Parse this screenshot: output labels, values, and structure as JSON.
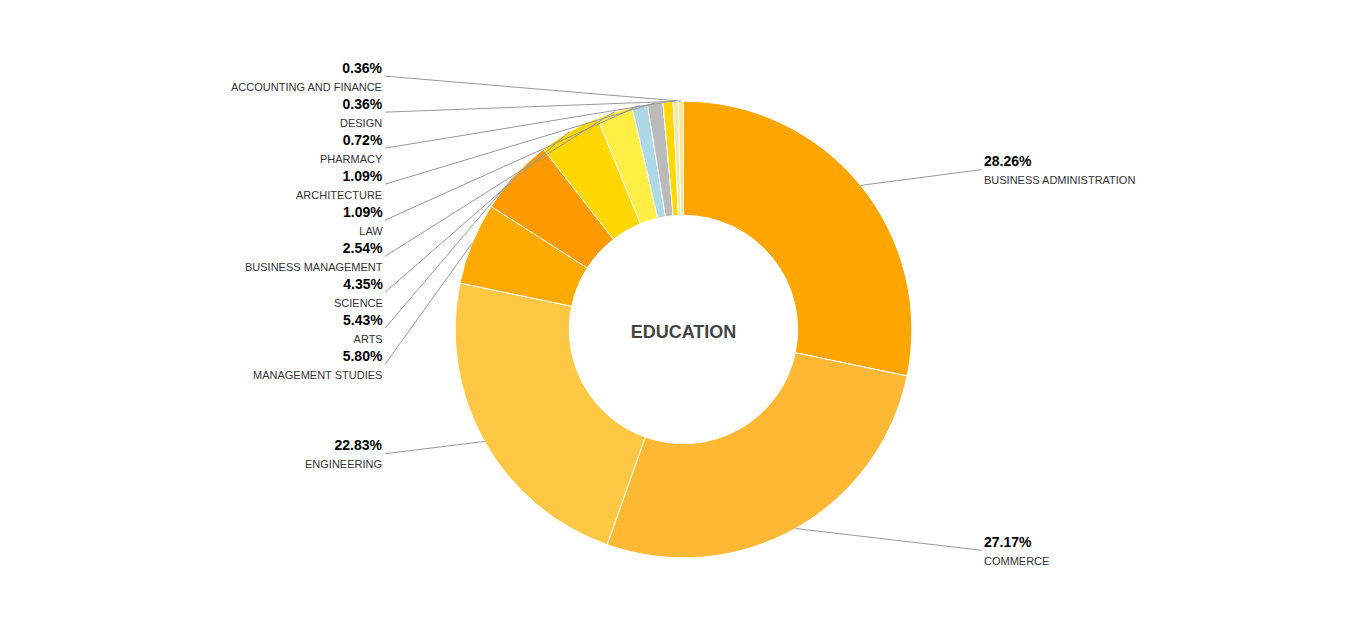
{
  "chart_data": {
    "type": "pie",
    "title": "EDUCATION",
    "categories": [
      "BUSINESS ADMINISTRATION",
      "COMMERCE",
      "ENGINEERING",
      "MANAGEMENT STUDIES",
      "ARTS",
      "SCIENCE",
      "BUSINESS MANAGEMENT",
      "LAW",
      "ARCHITECTURE",
      "PHARMACY",
      "DESIGN",
      "ACCOUNTING AND FINANCE"
    ],
    "values": [
      28.26,
      27.17,
      22.83,
      5.8,
      5.43,
      4.35,
      2.54,
      1.09,
      1.09,
      0.72,
      0.36,
      0.36
    ],
    "value_labels": [
      "28.26%",
      "27.17%",
      "22.83%",
      "5.80%",
      "5.43%",
      "4.35%",
      "2.54%",
      "1.09%",
      "1.09%",
      "0.72%",
      "0.36%",
      "0.36%"
    ],
    "colors": [
      "#FFA500",
      "#FFB833",
      "#FFC844",
      "#FFAA00",
      "#FF9900",
      "#FFD700",
      "#FFEE44",
      "#ADD8E6",
      "#BBBBBB",
      "#FFD700",
      "#EEE8A9",
      "#FFE590"
    ],
    "data_labels": true
  }
}
